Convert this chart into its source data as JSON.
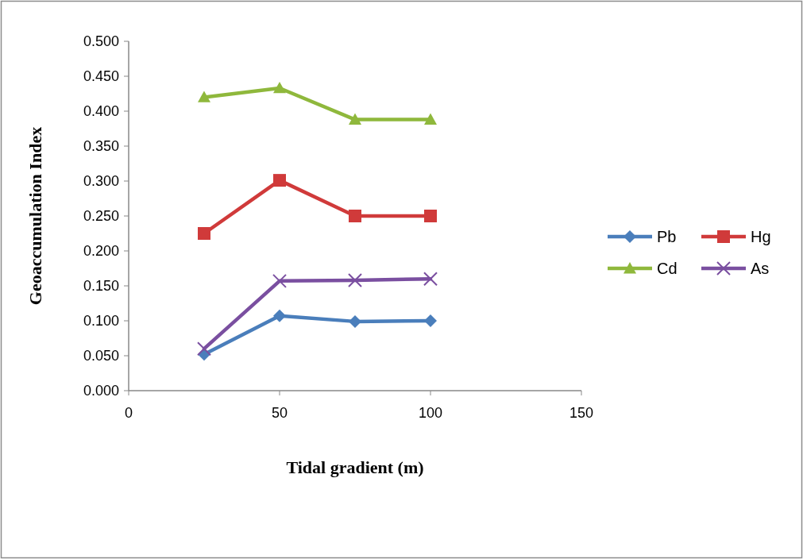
{
  "chart_data": {
    "type": "line",
    "xlabel": "Tidal gradient (m)",
    "ylabel": "Geoaccumulation Index",
    "x": [
      25,
      50,
      75,
      100
    ],
    "series": [
      {
        "name": "Pb",
        "color": "#4a7ebb",
        "marker": "diamond",
        "values": [
          0.052,
          0.107,
          0.099,
          0.1
        ]
      },
      {
        "name": "Hg",
        "color": "#d03a3a",
        "marker": "square",
        "values": [
          0.225,
          0.301,
          0.25,
          0.25
        ]
      },
      {
        "name": "Cd",
        "color": "#8fb83c",
        "marker": "triangle",
        "values": [
          0.42,
          0.433,
          0.388,
          0.388
        ]
      },
      {
        "name": "As",
        "color": "#7a4fa0",
        "marker": "cross",
        "values": [
          0.06,
          0.157,
          0.158,
          0.16
        ]
      }
    ],
    "xlim": [
      0,
      150
    ],
    "xticks": [
      0,
      50,
      100,
      150
    ],
    "ylim": [
      0,
      0.5
    ],
    "yticks": [
      {
        "value": 0,
        "label": "0.000"
      },
      {
        "value": 0.05,
        "label": "0.050"
      },
      {
        "value": 0.1,
        "label": "0.100"
      },
      {
        "value": 0.15,
        "label": "0.150"
      },
      {
        "value": 0.2,
        "label": "0.200"
      },
      {
        "value": 0.25,
        "label": "0.250"
      },
      {
        "value": 0.3,
        "label": "0.300"
      },
      {
        "value": 0.35,
        "label": "0.350"
      },
      {
        "value": 0.4,
        "label": "0.400"
      },
      {
        "value": 0.45,
        "label": "0.450"
      },
      {
        "value": 0.5,
        "label": "0.500"
      }
    ],
    "grid": false,
    "legend": "right",
    "line_style": "solid"
  }
}
